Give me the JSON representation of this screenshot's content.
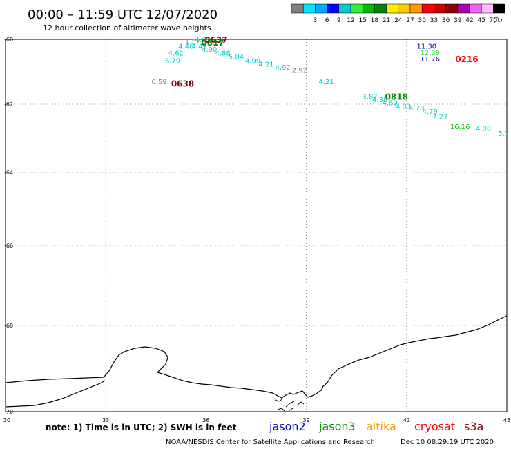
{
  "header": {
    "title": "00:00 – 11:59 UTC 12/07/2020",
    "subtitle": "12 hour collection of altimeter wave heights"
  },
  "legend": {
    "unit": "(ft)",
    "swatches": [
      {
        "color": "#808080",
        "label": ""
      },
      {
        "color": "#00e6ff",
        "label": "3"
      },
      {
        "color": "#00aaff",
        "label": "6"
      },
      {
        "color": "#0000ff",
        "label": "9"
      },
      {
        "color": "#00cccc",
        "label": "12"
      },
      {
        "color": "#33ee33",
        "label": "15"
      },
      {
        "color": "#00bb00",
        "label": "18"
      },
      {
        "color": "#008800",
        "label": "21"
      },
      {
        "color": "#ffee00",
        "label": "24"
      },
      {
        "color": "#ffcc00",
        "label": "27"
      },
      {
        "color": "#ff9900",
        "label": "30"
      },
      {
        "color": "#ff0000",
        "label": "33"
      },
      {
        "color": "#cc0000",
        "label": "36"
      },
      {
        "color": "#880000",
        "label": "39"
      },
      {
        "color": "#aa00aa",
        "label": "42"
      },
      {
        "color": "#ee66ee",
        "label": "45"
      },
      {
        "color": "#ffbbff",
        "label": "70"
      },
      {
        "color": "#000000",
        "label": ""
      }
    ]
  },
  "map": {
    "lon_range": [
      30,
      45
    ],
    "lat_range": [
      -60,
      -70
    ],
    "lon_ticks": [
      "30",
      "33",
      "36",
      "39",
      "42",
      "45"
    ],
    "lat_ticks": [
      "-60",
      "-62",
      "-64",
      "-66",
      "-68",
      "-70"
    ]
  },
  "observations": [
    {
      "text": "4.65",
      "color": "#00cccc",
      "lon": 35.9,
      "lat": -60.0
    },
    {
      "text": "1.57",
      "color": "#808080",
      "lon": 35.6,
      "lat": -60.05
    },
    {
      "text": "4.46",
      "color": "#00cccc",
      "lon": 35.4,
      "lat": -60.2
    },
    {
      "text": "4.49",
      "color": "#00cccc",
      "lon": 35.8,
      "lat": -60.2
    },
    {
      "text": "4.90",
      "color": "#00cccc",
      "lon": 36.1,
      "lat": -60.3
    },
    {
      "text": "4.62",
      "color": "#00cccc",
      "lon": 35.1,
      "lat": -60.42
    },
    {
      "text": "4.88",
      "color": "#00cccc",
      "lon": 36.5,
      "lat": -60.42
    },
    {
      "text": "5.04",
      "color": "#00cccc",
      "lon": 36.9,
      "lat": -60.52
    },
    {
      "text": "6.79",
      "color": "#00cccc",
      "lon": 35.0,
      "lat": -60.65
    },
    {
      "text": "4.99",
      "color": "#00cccc",
      "lon": 37.4,
      "lat": -60.65
    },
    {
      "text": "4.21",
      "color": "#00cccc",
      "lon": 37.8,
      "lat": -60.75
    },
    {
      "text": "4.92",
      "color": "#00cccc",
      "lon": 38.3,
      "lat": -60.85
    },
    {
      "text": "2.92",
      "color": "#808080",
      "lon": 38.8,
      "lat": -60.95
    },
    {
      "text": "0.59",
      "color": "#808080",
      "lon": 34.6,
      "lat": -61.3
    },
    {
      "text": "4.21",
      "color": "#00cccc",
      "lon": 39.6,
      "lat": -61.3
    },
    {
      "text": "3.87",
      "color": "#00cccc",
      "lon": 40.9,
      "lat": -61.75
    },
    {
      "text": "4.38",
      "color": "#00cccc",
      "lon": 41.2,
      "lat": -61.85
    },
    {
      "text": "4.50",
      "color": "#00cccc",
      "lon": 41.5,
      "lat": -61.95
    },
    {
      "text": "4.83",
      "color": "#00cccc",
      "lon": 41.9,
      "lat": -62.05
    },
    {
      "text": "4.78",
      "color": "#00cccc",
      "lon": 42.3,
      "lat": -62.1
    },
    {
      "text": "4.79",
      "color": "#00cccc",
      "lon": 42.7,
      "lat": -62.2
    },
    {
      "text": "7.27",
      "color": "#00cccc",
      "lon": 43.0,
      "lat": -62.35
    },
    {
      "text": "16.16",
      "color": "#00bb00",
      "lon": 43.6,
      "lat": -62.65
    },
    {
      "text": "4.38",
      "color": "#00cccc",
      "lon": 44.3,
      "lat": -62.7
    },
    {
      "text": "5.7",
      "color": "#00cccc",
      "lon": 44.9,
      "lat": -62.85
    },
    {
      "text": "11.30",
      "color": "#0000aa",
      "lon": 42.6,
      "lat": -60.2
    },
    {
      "text": "12.39",
      "color": "#33ee33",
      "lon": 42.7,
      "lat": -60.4
    },
    {
      "text": "11.76",
      "color": "#0000aa",
      "lon": 42.7,
      "lat": -60.6
    }
  ],
  "times": [
    {
      "text": "0637",
      "color": "#880000",
      "lon": 36.3,
      "lat": -60.0
    },
    {
      "text": "0817",
      "color": "#008800",
      "lon": 36.2,
      "lat": -60.08
    },
    {
      "text": "0638",
      "color": "#880000",
      "lon": 35.3,
      "lat": -61.35
    },
    {
      "text": "0818",
      "color": "#008800",
      "lon": 41.7,
      "lat": -61.75
    },
    {
      "text": "0216",
      "color": "#ff0000",
      "lon": 43.8,
      "lat": -60.6
    }
  ],
  "footer": {
    "note": "note: 1) Time is in UTC; 2) SWH is in feet",
    "satellites": [
      {
        "name": "jason2",
        "color": "#0000cc"
      },
      {
        "name": "jason3",
        "color": "#008800"
      },
      {
        "name": "altika",
        "color": "#ff9900"
      },
      {
        "name": "cryosat",
        "color": "#ff0000"
      },
      {
        "name": "s3a",
        "color": "#880000"
      }
    ],
    "credit": "NOAA/NESDIS Center for Satellite Applications and Research",
    "timestamp": "Dec 10 08:29:19 UTC 2020"
  }
}
